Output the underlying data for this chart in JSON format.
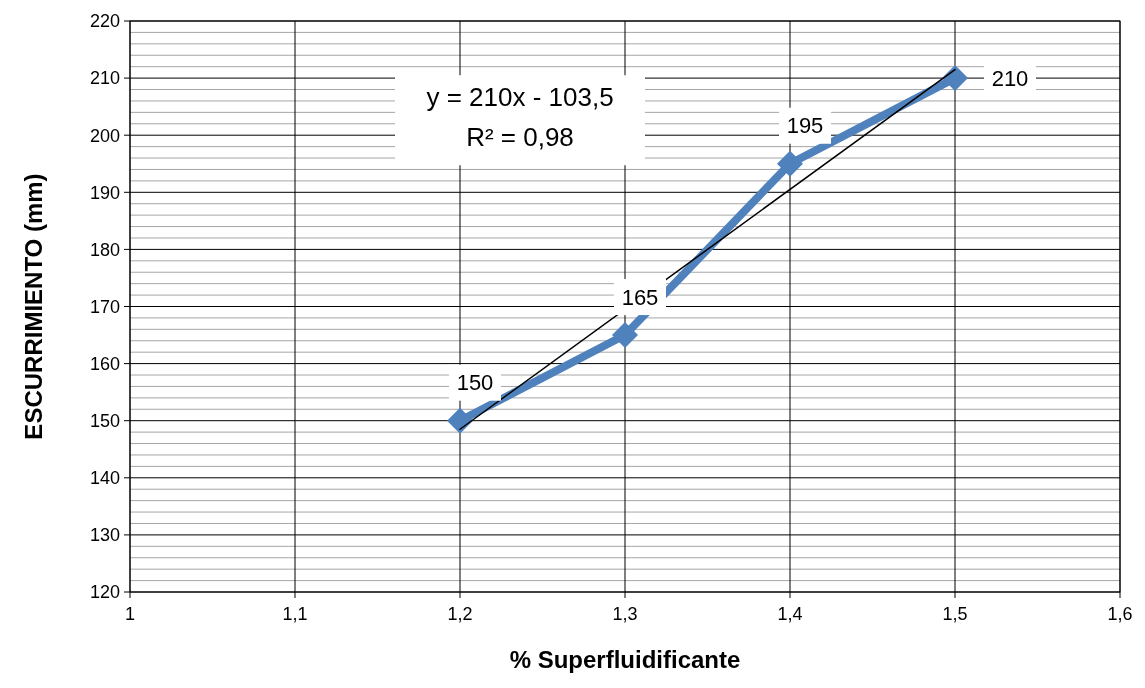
{
  "chart_data": {
    "type": "line",
    "xlabel": "% Superfluidificante",
    "ylabel": "ESCURRIMIENTO (mm)",
    "xlim": [
      1,
      1.6
    ],
    "xticks": [
      {
        "value": 1,
        "label": "1"
      },
      {
        "value": 1.1,
        "label": "1,1"
      },
      {
        "value": 1.2,
        "label": "1,2"
      },
      {
        "value": 1.3,
        "label": "1,3"
      },
      {
        "value": 1.4,
        "label": "1,4"
      },
      {
        "value": 1.5,
        "label": "1,5"
      },
      {
        "value": 1.6,
        "label": "1,6"
      }
    ],
    "ylim": [
      120,
      220
    ],
    "yticks": [
      120,
      {
        "value": 122,
        "label": null
      },
      {
        "value": 124,
        "label": null
      },
      {
        "value": 126,
        "label": null
      },
      {
        "value": 128,
        "label": null
      },
      130,
      {
        "value": 132,
        "label": null
      },
      {
        "value": 134,
        "label": null
      },
      {
        "value": 136,
        "label": null
      },
      {
        "value": 138,
        "label": null
      },
      140,
      {
        "value": 142,
        "label": null
      },
      {
        "value": 144,
        "label": null
      },
      {
        "value": 146,
        "label": null
      },
      {
        "value": 148,
        "label": null
      },
      150,
      {
        "value": 152,
        "label": null
      },
      {
        "value": 154,
        "label": null
      },
      {
        "value": 156,
        "label": null
      },
      {
        "value": 158,
        "label": null
      },
      160,
      {
        "value": 162,
        "label": null
      },
      {
        "value": 164,
        "label": null
      },
      {
        "value": 166,
        "label": null
      },
      {
        "value": 168,
        "label": null
      },
      170,
      {
        "value": 172,
        "label": null
      },
      {
        "value": 174,
        "label": null
      },
      {
        "value": 176,
        "label": null
      },
      {
        "value": 178,
        "label": null
      },
      180,
      {
        "value": 182,
        "label": null
      },
      {
        "value": 184,
        "label": null
      },
      {
        "value": 186,
        "label": null
      },
      {
        "value": 188,
        "label": null
      },
      190,
      {
        "value": 192,
        "label": null
      },
      {
        "value": 194,
        "label": null
      },
      {
        "value": 196,
        "label": null
      },
      {
        "value": 198,
        "label": null
      },
      200,
      {
        "value": 202,
        "label": null
      },
      {
        "value": 204,
        "label": null
      },
      {
        "value": 206,
        "label": null
      },
      {
        "value": 208,
        "label": null
      },
      210,
      {
        "value": 212,
        "label": null
      },
      {
        "value": 214,
        "label": null
      },
      {
        "value": 216,
        "label": null
      },
      {
        "value": 218,
        "label": null
      },
      220
    ],
    "grid": true,
    "series": [
      {
        "color": "#4f81bd",
        "x": [
          1.2,
          1.3,
          1.4,
          1.5
        ],
        "values": [
          150,
          165,
          195,
          210
        ],
        "value_labels": [
          "150",
          "165",
          "195",
          "210"
        ],
        "marker": "diamond"
      },
      {
        "type": "line",
        "color": "#000000",
        "x": [
          1.2,
          1.5
        ],
        "values": [
          148.5,
          211.5
        ],
        "marker": "none"
      }
    ],
    "annotations": [
      "y = 210x - 103,5",
      "R² = 0,98"
    ]
  }
}
